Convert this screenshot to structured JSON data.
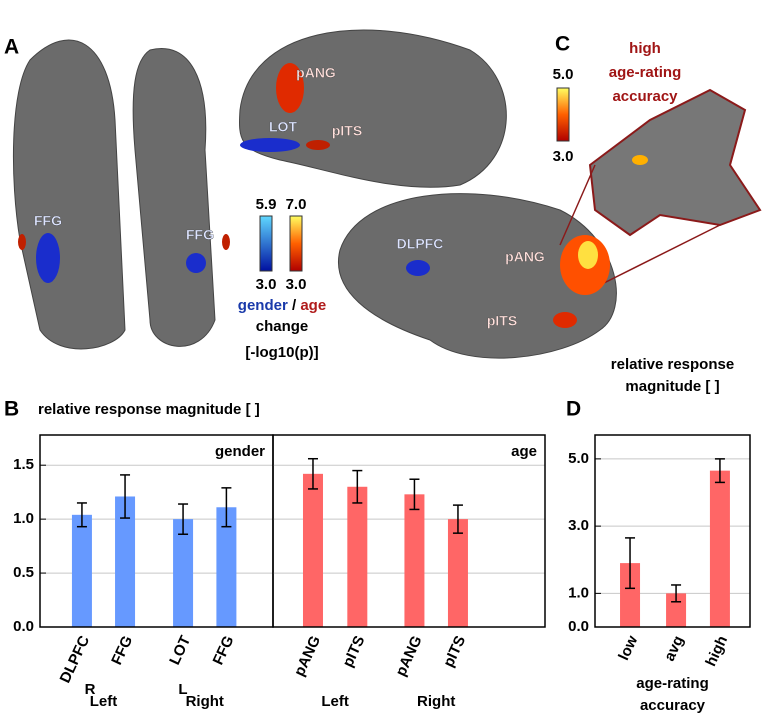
{
  "panel_labels": [
    "A",
    "B",
    "C",
    "D"
  ],
  "brain": {
    "hemispheres": [
      "R",
      "L"
    ],
    "regions": [
      "FFG",
      "FFG",
      "LOT",
      "pANG",
      "pITS",
      "DLPFC",
      "pANG",
      "pITS"
    ],
    "colorbars": [
      {
        "max": 5.9,
        "min": {
          "value": 3,
          "label": "3.0"
        }
      },
      {
        "max": {
          "value": 7,
          "label": "7.0"
        },
        "min": {
          "value": 3,
          "label": "3.0"
        }
      }
    ],
    "legend": {
      "gender": "gender",
      "separator": "/",
      "age": "age",
      "change": "change",
      "unit": "[-log10(p)]"
    }
  },
  "inset": {
    "title_lines": [
      "high",
      "age-rating",
      "accuracy"
    ],
    "colorbar": {
      "max": {
        "value": 5,
        "label": "5.0"
      },
      "min": {
        "value": 3,
        "label": "3.0"
      }
    }
  },
  "chart_data": [
    {
      "type": "bar",
      "title": "relative response magnitude [ ]",
      "label": "gender",
      "categories": [
        "DLPFC",
        "FFG",
        "LOT",
        "FFG"
      ],
      "groups": [
        "Left",
        "Right"
      ],
      "values": [
        1.04,
        1.21,
        1.0,
        1.11
      ],
      "errors": [
        0.11,
        0.2,
        0.14,
        0.18
      ],
      "color": "#6699ff",
      "ylim": [
        0,
        1.78
      ],
      "yticks": [
        {
          "value": 0,
          "label": "0.0"
        },
        {
          "value": 0.5,
          "label": "0.5"
        },
        {
          "value": 1,
          "label": "1.0"
        },
        {
          "value": 1.5,
          "label": "1.5"
        }
      ],
      "grid": true
    },
    {
      "type": "bar",
      "label": "age",
      "categories": [
        "pANG",
        "pITS",
        "pANG",
        "pITS"
      ],
      "groups": [
        "Left",
        "Right"
      ],
      "values": [
        1.42,
        1.3,
        1.23,
        1.0
      ],
      "errors": [
        0.14,
        0.15,
        0.14,
        0.13
      ],
      "color": "#ff6666",
      "ylim": [
        0,
        1.78
      ],
      "grid": true
    },
    {
      "type": "bar",
      "title_lines": [
        "relative response",
        "magnitude [ ]"
      ],
      "categories": [
        "low",
        "avg",
        "high"
      ],
      "values": [
        1.9,
        1.0,
        4.65
      ],
      "errors": [
        0.75,
        0.25,
        0.35
      ],
      "color": "#ff6666",
      "ylim": [
        0,
        5.71
      ],
      "yticks": [
        {
          "value": 0,
          "label": "0.0"
        },
        {
          "value": 1,
          "label": "1.0"
        },
        {
          "value": 3,
          "label": "3.0"
        },
        {
          "value": 5,
          "label": "5.0"
        }
      ],
      "grid": true,
      "xlabel_lines": [
        "age-rating",
        "accuracy"
      ]
    }
  ]
}
